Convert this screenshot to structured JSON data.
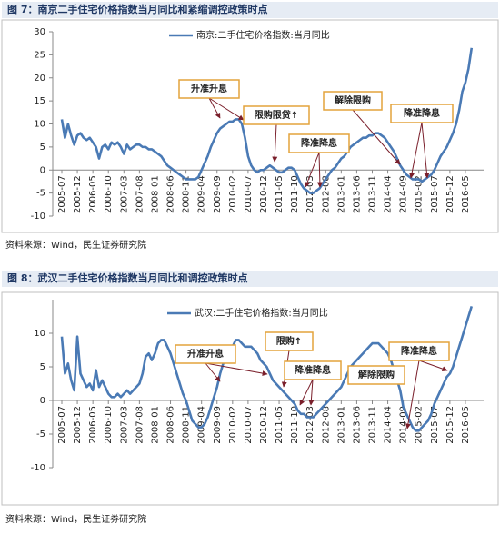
{
  "chart_data": [
    {
      "type": "line",
      "title": "图 7：南京二手住宅价格指数当月同比和紧缩调控政策时点",
      "source": "资料来源：Wind，民生证券研究院",
      "categories": [
        "2005-07",
        null,
        null,
        null,
        null,
        "2005-12",
        null,
        null,
        null,
        null,
        "2006-05",
        null,
        null,
        null,
        null,
        "2006-10",
        null,
        null,
        null,
        null,
        "2007-03",
        null,
        null,
        null,
        null,
        "2007-08",
        null,
        null,
        null,
        null,
        "2008-01",
        null,
        null,
        null,
        null,
        "2008-06",
        null,
        null,
        null,
        null,
        "2008-11",
        null,
        null,
        null,
        null,
        "2009-04",
        null,
        null,
        null,
        null,
        "2009-09",
        null,
        null,
        null,
        null,
        "2010-02",
        null,
        null,
        null,
        null,
        "2010-07",
        null,
        null,
        null,
        null,
        "2010-12",
        null,
        null,
        null,
        null,
        "2011-05",
        null,
        null,
        null,
        null,
        "2011-10",
        null,
        null,
        null,
        null,
        "2012-03",
        null,
        null,
        null,
        null,
        "2012-08",
        null,
        null,
        null,
        null,
        "2013-01",
        null,
        null,
        null,
        null,
        "2013-06",
        null,
        null,
        null,
        null,
        "2013-11",
        null,
        null,
        null,
        null,
        "2014-04",
        null,
        null,
        null,
        null,
        "2014-09",
        null,
        null,
        null,
        null,
        "2015-02",
        null,
        null,
        null,
        null,
        "2015-07",
        null,
        null,
        null,
        null,
        "2015-12",
        null,
        null,
        null,
        null,
        "2016-05",
        null,
        null
      ],
      "series": [
        {
          "name": "南京:二手住宅价格指数:当月同比",
          "color": "#4a7ab5",
          "values": [
            11,
            7,
            10,
            7.5,
            5.5,
            7.5,
            8,
            7,
            6.5,
            7,
            6,
            5,
            2.5,
            5,
            5.5,
            4.5,
            6,
            5.5,
            6,
            5,
            3.5,
            5.5,
            4.5,
            5,
            5.5,
            5.5,
            5,
            5,
            4.5,
            4.5,
            4,
            3.5,
            3,
            2,
            1,
            0.5,
            0,
            -0.5,
            -1,
            -1.5,
            -2,
            -2,
            -2,
            -2,
            -1.5,
            0,
            1.5,
            3,
            5,
            6.5,
            8,
            9,
            9.5,
            10,
            10.5,
            10.5,
            11,
            11,
            10,
            7,
            3,
            1,
            0,
            -0.5,
            0,
            0,
            0.5,
            1,
            0.5,
            0,
            -0.5,
            -0.5,
            0,
            0.5,
            0.5,
            0,
            -1.5,
            -3,
            -4,
            -4.5,
            -5,
            -5,
            -4.5,
            -4,
            -3,
            -2,
            -1,
            0,
            0.5,
            1.5,
            2.5,
            3,
            4,
            5,
            5.5,
            6,
            6.5,
            7,
            7,
            7.5,
            7.5,
            8,
            8,
            7.5,
            7,
            6,
            5,
            4,
            2.5,
            1,
            0,
            -1,
            -1.5,
            -2,
            -2,
            -2,
            -2.5,
            -2,
            -1.5,
            -1,
            0,
            1.5,
            3,
            4,
            5,
            6.5,
            8,
            10,
            13,
            17,
            19,
            22,
            26.5
          ]
        }
      ],
      "ylim": [
        -10,
        30
      ],
      "yticks": [
        -10,
        -5,
        0,
        5,
        10,
        15,
        20,
        25,
        30
      ],
      "grid": false,
      "annotations": [
        {
          "text": "升准升息"
        },
        {
          "text": "限购限贷↑"
        },
        {
          "text": "降准降息"
        },
        {
          "text": "解除限购"
        },
        {
          "text": "降准降息"
        }
      ]
    },
    {
      "type": "line",
      "title": "图 8：武汉二手住宅价格指数当月同比和调控政策时点",
      "source": "资料来源：Wind，民生证券研究院",
      "categories": [
        "2005-07",
        null,
        null,
        null,
        null,
        "2005-12",
        null,
        null,
        null,
        null,
        "2006-05",
        null,
        null,
        null,
        null,
        "2006-10",
        null,
        null,
        null,
        null,
        "2007-03",
        null,
        null,
        null,
        null,
        "2007-08",
        null,
        null,
        null,
        null,
        "2008-01",
        null,
        null,
        null,
        null,
        "2008-06",
        null,
        null,
        null,
        null,
        "2008-11",
        null,
        null,
        null,
        null,
        "2009-04",
        null,
        null,
        null,
        null,
        "2009-09",
        null,
        null,
        null,
        null,
        "2010-02",
        null,
        null,
        null,
        null,
        "2010-07",
        null,
        null,
        null,
        null,
        "2010-12",
        null,
        null,
        null,
        null,
        "2011-05",
        null,
        null,
        null,
        null,
        "2011-10",
        null,
        null,
        null,
        null,
        "2012-03",
        null,
        null,
        null,
        null,
        "2012-08",
        null,
        null,
        null,
        null,
        "2013-01",
        null,
        null,
        null,
        null,
        "2013-06",
        null,
        null,
        null,
        null,
        "2013-11",
        null,
        null,
        null,
        null,
        "2014-04",
        null,
        null,
        null,
        null,
        "2014-09",
        null,
        null,
        null,
        null,
        "2015-02",
        null,
        null,
        null,
        null,
        "2015-07",
        null,
        null,
        null,
        null,
        "2015-12",
        null,
        null,
        null,
        null,
        "2016-05",
        null,
        null
      ],
      "series": [
        {
          "name": "武汉:二手住宅价格指数:当月同比",
          "color": "#4a7ab5",
          "values": [
            9.5,
            4,
            5.5,
            3,
            1.5,
            9.5,
            4,
            3,
            2,
            2.5,
            1.5,
            4.5,
            2,
            3,
            2,
            1,
            0.5,
            0.5,
            1,
            0.5,
            1,
            1.5,
            1,
            1.5,
            2,
            2.5,
            4,
            6.5,
            7,
            6,
            7,
            8.5,
            9,
            9,
            8,
            7,
            5.5,
            4,
            2.5,
            1,
            0,
            -1.5,
            -3,
            -3.5,
            -4,
            -4,
            -3.5,
            -2.5,
            -1,
            0.5,
            2,
            4,
            5.5,
            6.5,
            7,
            8,
            9,
            9,
            8.5,
            8,
            8,
            8,
            7.5,
            7,
            6,
            5.5,
            5,
            4,
            3,
            2.5,
            2,
            1.5,
            1,
            0.5,
            0,
            -0.5,
            -1.5,
            -2,
            -2,
            -2.5,
            -2.5,
            -2.5,
            -2,
            -1.5,
            -1,
            -0.5,
            0,
            0.5,
            1,
            1.5,
            2,
            3,
            4,
            5,
            5.5,
            6,
            6.5,
            7,
            7.5,
            8,
            8.5,
            8.5,
            8.5,
            8,
            7.5,
            7,
            6,
            4.5,
            3,
            1.5,
            -1,
            -2,
            -3,
            -4,
            -4.5,
            -4.5,
            -4,
            -3.5,
            -3,
            -2,
            -0.5,
            0.5,
            1.5,
            2.5,
            3.5,
            4,
            5,
            6.5,
            8,
            9.5,
            11,
            12.5,
            14
          ]
        }
      ],
      "ylim": [
        -10,
        15
      ],
      "yticks": [
        -10,
        -5,
        0,
        5,
        10
      ],
      "grid": false,
      "annotations": [
        {
          "text": "升准升息"
        },
        {
          "text": "限购↑"
        },
        {
          "text": "降准降息"
        },
        {
          "text": "解除限购"
        },
        {
          "text": "降准降息"
        }
      ]
    }
  ]
}
